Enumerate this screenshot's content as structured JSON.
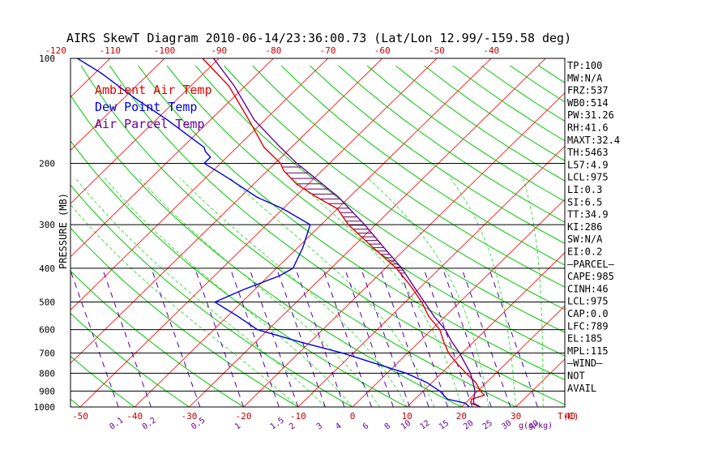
{
  "chart_data": {
    "type": "line",
    "title": "AIRS SkewT Diagram 2010-06-14/23:36:00.73 (Lat/Lon 12.99/-159.58 deg)",
    "ylabel": "PRESSURE (MB)",
    "xlabel": "T(C)",
    "mixing_label": "g(g/kg)",
    "y_scale": "log",
    "ylim": [
      1000,
      100
    ],
    "xlim": [
      -50,
      40
    ],
    "pressure_ticks": [
      {
        "p": 100,
        "label": "100"
      },
      {
        "p": 200,
        "label": "200"
      },
      {
        "p": 300,
        "label": "300"
      },
      {
        "p": 400,
        "label": "400"
      },
      {
        "p": 500,
        "label": "500"
      },
      {
        "p": 600,
        "label": "600"
      },
      {
        "p": 700,
        "label": "700"
      },
      {
        "p": 800,
        "label": "800"
      },
      {
        "p": 900,
        "label": "900"
      },
      {
        "p": 1000,
        "label": "1000"
      }
    ],
    "temp_ticks_bottom": [
      {
        "t": -50,
        "label": "-50"
      },
      {
        "t": -40,
        "label": "-40"
      },
      {
        "t": -30,
        "label": "-30"
      },
      {
        "t": -20,
        "label": "-20"
      },
      {
        "t": -10,
        "label": "-10"
      },
      {
        "t": 0,
        "label": "0"
      },
      {
        "t": 10,
        "label": "10"
      },
      {
        "t": 20,
        "label": "20"
      },
      {
        "t": 30,
        "label": "30"
      },
      {
        "t": 40,
        "label": "40"
      }
    ],
    "temp_ticks_top": [
      {
        "t": -120,
        "label": "-120"
      },
      {
        "t": -110,
        "label": "-110"
      },
      {
        "t": -100,
        "label": "-100"
      },
      {
        "t": -90,
        "label": "-90"
      },
      {
        "t": -80,
        "label": "-80"
      },
      {
        "t": -70,
        "label": "-70"
      },
      {
        "t": -60,
        "label": "-60"
      },
      {
        "t": -50,
        "label": "-50"
      },
      {
        "t": -40,
        "label": "-40"
      }
    ],
    "mixing_ratio_ticks": [
      {
        "t": -43,
        "label": "0.1"
      },
      {
        "t": -37,
        "label": "0.2"
      },
      {
        "t": -28,
        "label": "0.5"
      },
      {
        "t": -20,
        "label": "1"
      },
      {
        "t": -13.5,
        "label": "1.5"
      },
      {
        "t": -10,
        "label": "2"
      },
      {
        "t": -5,
        "label": "3"
      },
      {
        "t": -1.5,
        "label": "4"
      },
      {
        "t": 3.5,
        "label": "6"
      },
      {
        "t": 7.5,
        "label": "8"
      },
      {
        "t": 10.5,
        "label": "10"
      },
      {
        "t": 14,
        "label": "12"
      },
      {
        "t": 17.5,
        "label": "15"
      },
      {
        "t": 22,
        "label": "20"
      },
      {
        "t": 25.5,
        "label": "25"
      },
      {
        "t": 29,
        "label": "30"
      },
      {
        "t": 34,
        "label": "40"
      }
    ],
    "legend": [
      {
        "name": "Ambient Air Temp",
        "color": "#e00000"
      },
      {
        "name": "Dew Point Temp",
        "color": "#0000e0"
      },
      {
        "name": "Air Parcel Temp",
        "color": "#660099"
      }
    ],
    "series": [
      {
        "name": "Ambient Air Temp",
        "color": "#e00000",
        "points": [
          {
            "p": 1000,
            "t": 23.5
          },
          {
            "p": 975,
            "t": 21
          },
          {
            "p": 950,
            "t": 20.4
          },
          {
            "p": 925,
            "t": 22
          },
          {
            "p": 900,
            "t": 20.5
          },
          {
            "p": 850,
            "t": 18
          },
          {
            "p": 800,
            "t": 14.5
          },
          {
            "p": 750,
            "t": 11
          },
          {
            "p": 700,
            "t": 7.5
          },
          {
            "p": 650,
            "t": 4.5
          },
          {
            "p": 600,
            "t": 1.5
          },
          {
            "p": 550,
            "t": -3
          },
          {
            "p": 500,
            "t": -7
          },
          {
            "p": 450,
            "t": -12
          },
          {
            "p": 400,
            "t": -18
          },
          {
            "p": 350,
            "t": -26
          },
          {
            "p": 300,
            "t": -35
          },
          {
            "p": 270,
            "t": -40
          },
          {
            "p": 250,
            "t": -46
          },
          {
            "p": 230,
            "t": -52
          },
          {
            "p": 210,
            "t": -57
          },
          {
            "p": 200,
            "t": -59
          },
          {
            "p": 180,
            "t": -65
          },
          {
            "p": 150,
            "t": -73
          },
          {
            "p": 120,
            "t": -83
          },
          {
            "p": 100,
            "t": -93
          }
        ]
      },
      {
        "name": "Dew Point Temp",
        "color": "#0000e0",
        "points": [
          {
            "p": 1000,
            "t": 21.5
          },
          {
            "p": 975,
            "t": 20
          },
          {
            "p": 950,
            "t": 16
          },
          {
            "p": 900,
            "t": 13
          },
          {
            "p": 850,
            "t": 9
          },
          {
            "p": 800,
            "t": 3.5
          },
          {
            "p": 750,
            "t": -4
          },
          {
            "p": 700,
            "t": -12
          },
          {
            "p": 650,
            "t": -22
          },
          {
            "p": 600,
            "t": -32
          },
          {
            "p": 550,
            "t": -38
          },
          {
            "p": 500,
            "t": -45
          },
          {
            "p": 460,
            "t": -42
          },
          {
            "p": 420,
            "t": -38
          },
          {
            "p": 400,
            "t": -37
          },
          {
            "p": 350,
            "t": -39
          },
          {
            "p": 300,
            "t": -42
          },
          {
            "p": 270,
            "t": -50
          },
          {
            "p": 250,
            "t": -57
          },
          {
            "p": 220,
            "t": -66
          },
          {
            "p": 200,
            "t": -73
          },
          {
            "p": 192,
            "t": -73
          },
          {
            "p": 185,
            "t": -75
          },
          {
            "p": 180,
            "t": -76
          },
          {
            "p": 150,
            "t": -88
          },
          {
            "p": 130,
            "t": -98
          },
          {
            "p": 110,
            "t": -109
          },
          {
            "p": 100,
            "t": -116
          }
        ]
      },
      {
        "name": "Air Parcel Temp",
        "color": "#660099",
        "points": [
          {
            "p": 1000,
            "t": 23.5
          },
          {
            "p": 975,
            "t": 21.5
          },
          {
            "p": 950,
            "t": 20.8
          },
          {
            "p": 900,
            "t": 19.5
          },
          {
            "p": 850,
            "t": 17.5
          },
          {
            "p": 800,
            "t": 15.3
          },
          {
            "p": 750,
            "t": 12.5
          },
          {
            "p": 700,
            "t": 9.5
          },
          {
            "p": 650,
            "t": 6
          },
          {
            "p": 600,
            "t": 2.5
          },
          {
            "p": 550,
            "t": -2
          },
          {
            "p": 500,
            "t": -6.5
          },
          {
            "p": 450,
            "t": -11.5
          },
          {
            "p": 400,
            "t": -17
          },
          {
            "p": 350,
            "t": -24
          },
          {
            "p": 300,
            "t": -32
          },
          {
            "p": 250,
            "t": -42
          },
          {
            "p": 220,
            "t": -50
          },
          {
            "p": 200,
            "t": -56
          },
          {
            "p": 180,
            "t": -62
          },
          {
            "p": 150,
            "t": -72
          },
          {
            "p": 120,
            "t": -82
          },
          {
            "p": 100,
            "t": -91
          }
        ]
      }
    ],
    "indices": [
      "TP:100",
      "MW:N/A",
      "FRZ:537",
      "WB0:514",
      "PW:31.26",
      "RH:41.6",
      "MAXT:32.4",
      "TH:5463",
      "L57:4.9",
      "LCL:975",
      "LI:0.3",
      "SI:6.5",
      "TT:34.9",
      "KI:286",
      "SW:N/A",
      "EI:0.2",
      "—PARCEL—",
      "CAPE:985",
      "CINH:46",
      "LCL:975",
      "CAP:0.0",
      "LFC:789",
      "EL:185",
      "MPL:115",
      "—WIND—",
      "NOT",
      "AVAIL"
    ],
    "colors": {
      "isotherm": "#ff2a2a",
      "dry_adiabat": "#00c800",
      "moist_adiabat": "#33dd33",
      "mixing_ratio": "#5500aa",
      "isobar": "#000000",
      "axis_text": "#c80000",
      "mixing_text": "#660099"
    }
  }
}
